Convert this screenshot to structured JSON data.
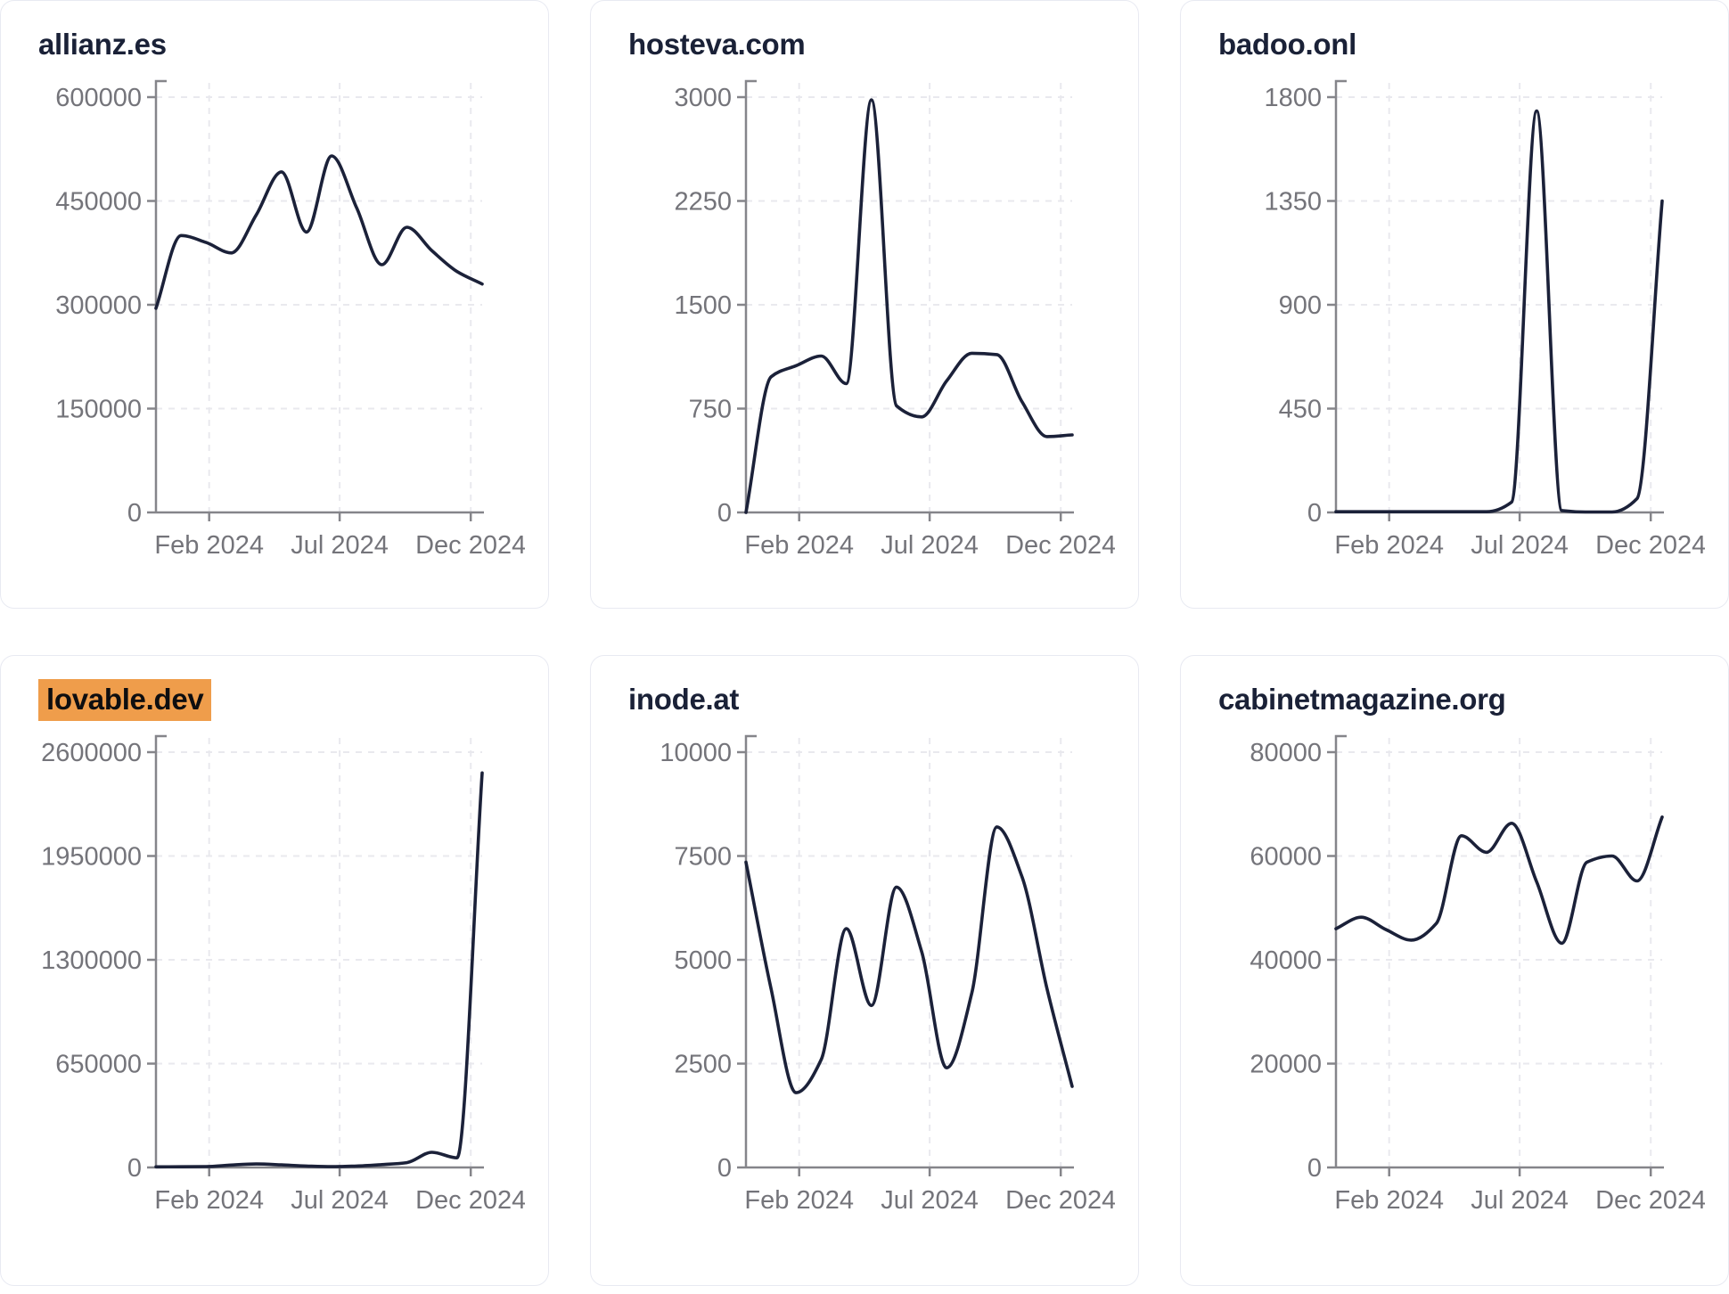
{
  "theme": {
    "line_color": "#1B2139",
    "title_color": "#1A2137",
    "tick_label_color": "#74747A",
    "axis_color": "#85858A",
    "grid_color": "#E9E9EE",
    "card_border_color": "#E8EAF2",
    "card_background": "#FFFFFF",
    "highlight_color": "#EF9D4B",
    "highlight_text_color": "#0E0E10"
  },
  "x_months": [
    "Dec 2023",
    "Jan 2024",
    "Feb 2024",
    "Mar 2024",
    "Apr 2024",
    "May 2024",
    "Jun 2024",
    "Jul 2024",
    "Aug 2024",
    "Sep 2024",
    "Oct 2024",
    "Nov 2024",
    "Dec 2024",
    "Jan 2025"
  ],
  "x_ticks_shown": [
    "Feb 2024",
    "Jul 2024",
    "Dec 2024"
  ],
  "chart_data": [
    {
      "type": "line",
      "title": "allianz.es",
      "highlighted": false,
      "x": [
        "Dec 2023",
        "Jan 2024",
        "Feb 2024",
        "Mar 2024",
        "Apr 2024",
        "May 2024",
        "Jun 2024",
        "Jul 2024",
        "Aug 2024",
        "Sep 2024",
        "Oct 2024",
        "Nov 2024",
        "Dec 2024",
        "Jan 2025"
      ],
      "values": [
        295000,
        400000,
        390000,
        375000,
        430000,
        492000,
        405000,
        515000,
        440000,
        358000,
        412000,
        378000,
        348000,
        330000
      ],
      "ylim": [
        0,
        600000
      ],
      "yticks": [
        0,
        150000,
        300000,
        450000,
        600000
      ],
      "xticks": [
        "Feb 2024",
        "Jul 2024",
        "Dec 2024"
      ],
      "grid": true,
      "legend": "none"
    },
    {
      "type": "line",
      "title": "hosteva.com",
      "highlighted": false,
      "x": [
        "Dec 2023",
        "Jan 2024",
        "Feb 2024",
        "Mar 2024",
        "Apr 2024",
        "May 2024",
        "Jun 2024",
        "Jul 2024",
        "Aug 2024",
        "Sep 2024",
        "Oct 2024",
        "Nov 2024",
        "Dec 2024",
        "Jan 2025"
      ],
      "values": [
        0,
        980,
        1060,
        1130,
        930,
        2980,
        770,
        690,
        950,
        1150,
        1140,
        800,
        548,
        560
      ],
      "ylim": [
        0,
        3000
      ],
      "yticks": [
        0,
        750,
        1500,
        2250,
        3000
      ],
      "xticks": [
        "Feb 2024",
        "Jul 2024",
        "Dec 2024"
      ],
      "grid": true,
      "legend": "none"
    },
    {
      "type": "line",
      "title": "badoo.onl",
      "highlighted": false,
      "x": [
        "Dec 2023",
        "Jan 2024",
        "Feb 2024",
        "Mar 2024",
        "Apr 2024",
        "May 2024",
        "Jun 2024",
        "Jul 2024",
        "Aug 2024",
        "Sep 2024",
        "Oct 2024",
        "Nov 2024",
        "Dec 2024",
        "Jan 2025"
      ],
      "values": [
        3,
        3,
        3,
        3,
        3,
        3,
        3,
        45,
        1740,
        8,
        2,
        2,
        60,
        1350
      ],
      "ylim": [
        0,
        1800
      ],
      "yticks": [
        0,
        450,
        900,
        1350,
        1800
      ],
      "xticks": [
        "Feb 2024",
        "Jul 2024",
        "Dec 2024"
      ],
      "grid": true,
      "legend": "none"
    },
    {
      "type": "line",
      "title": "lovable.dev",
      "highlighted": true,
      "x": [
        "Dec 2023",
        "Jan 2024",
        "Feb 2024",
        "Mar 2024",
        "Apr 2024",
        "May 2024",
        "Jun 2024",
        "Jul 2024",
        "Aug 2024",
        "Sep 2024",
        "Oct 2024",
        "Nov 2024",
        "Dec 2024",
        "Jan 2025"
      ],
      "values": [
        4000,
        4500,
        5500,
        15000,
        22000,
        16000,
        9000,
        5000,
        9000,
        18000,
        30000,
        95000,
        60000,
        2470000
      ],
      "ylim": [
        0,
        2600000
      ],
      "yticks": [
        0,
        650000,
        1300000,
        1950000,
        2600000
      ],
      "xticks": [
        "Feb 2024",
        "Jul 2024",
        "Dec 2024"
      ],
      "grid": true,
      "legend": "none"
    },
    {
      "type": "line",
      "title": "inode.at",
      "highlighted": false,
      "x": [
        "Dec 2023",
        "Jan 2024",
        "Feb 2024",
        "Mar 2024",
        "Apr 2024",
        "May 2024",
        "Jun 2024",
        "Jul 2024",
        "Aug 2024",
        "Sep 2024",
        "Oct 2024",
        "Nov 2024",
        "Dec 2024",
        "Jan 2025"
      ],
      "values": [
        7350,
        4300,
        1800,
        2600,
        5750,
        3900,
        6750,
        5200,
        2400,
        4200,
        8200,
        7000,
        4300,
        1950
      ],
      "ylim": [
        0,
        10000
      ],
      "yticks": [
        0,
        2500,
        5000,
        7500,
        10000
      ],
      "xticks": [
        "Feb 2024",
        "Jul 2024",
        "Dec 2024"
      ],
      "grid": true,
      "legend": "none"
    },
    {
      "type": "line",
      "title": "cabinetmagazine.org",
      "highlighted": false,
      "x": [
        "Dec 2023",
        "Jan 2024",
        "Feb 2024",
        "Mar 2024",
        "Apr 2024",
        "May 2024",
        "Jun 2024",
        "Jul 2024",
        "Aug 2024",
        "Sep 2024",
        "Oct 2024",
        "Nov 2024",
        "Dec 2024",
        "Jan 2025"
      ],
      "values": [
        46000,
        48200,
        45800,
        43800,
        47000,
        63900,
        60700,
        66300,
        55000,
        43200,
        58800,
        60000,
        55200,
        67500
      ],
      "ylim": [
        0,
        80000
      ],
      "yticks": [
        0,
        20000,
        40000,
        60000,
        80000
      ],
      "xticks": [
        "Feb 2024",
        "Jul 2024",
        "Dec 2024"
      ],
      "grid": true,
      "legend": "none"
    }
  ]
}
